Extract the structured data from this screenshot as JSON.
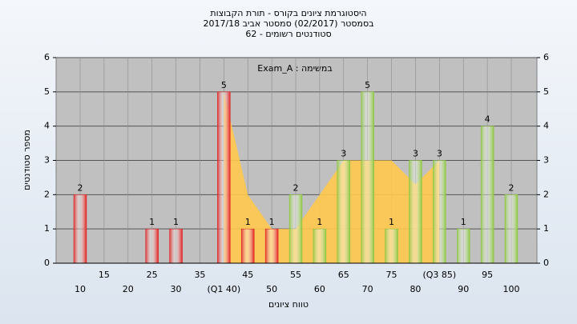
{
  "chart_data": {
    "type": "bar",
    "title": [
      "היסטוגרמת ציונים בקורס - תורת הקבוצות",
      "בסמסטר  (02/2017)  סמסטר אביב 2017/18",
      "62 - סטודנטים רשומים"
    ],
    "annotation": "Exam_A : במשימה",
    "ylabel": "מספר סטודנטים",
    "xlabel": "טווח ציונים",
    "categories": [
      "10",
      "15",
      "20",
      "25",
      "30",
      "35",
      "(Q1 40)",
      "45",
      "50",
      "55",
      "60",
      "65",
      "70",
      "75",
      "80",
      "(Q3 85)",
      "90",
      "95",
      "100"
    ],
    "values": [
      2,
      0,
      0,
      1,
      1,
      0,
      5,
      1,
      1,
      2,
      1,
      3,
      5,
      1,
      3,
      3,
      1,
      4,
      2
    ],
    "value_labels": [
      "2",
      null,
      null,
      "1",
      "1",
      null,
      "5",
      "1",
      "1",
      "2",
      "1",
      "3",
      "5",
      "1",
      "3",
      "3",
      "1",
      "4",
      "2"
    ],
    "colors": [
      "#e02020",
      "#e02020",
      "#e02020",
      "#e02020",
      "#e02020",
      "#e02020",
      "#e02020",
      "#e02020",
      "#e02020",
      "#8cc63f",
      "#8cc63f",
      "#8cc63f",
      "#8cc63f",
      "#8cc63f",
      "#8cc63f",
      "#8cc63f",
      "#8cc63f",
      "#8cc63f",
      "#8cc63f"
    ],
    "area_values": [
      null,
      null,
      null,
      null,
      null,
      null,
      5,
      2,
      1,
      1,
      2,
      3,
      3,
      3,
      2.3,
      3,
      null,
      null,
      null
    ],
    "area_color": "#ffc94d",
    "ylim": [
      0,
      6
    ],
    "yticks": [
      0,
      1,
      2,
      3,
      4,
      5,
      6
    ],
    "y2lim": [
      0,
      6
    ],
    "y2ticks": [
      0,
      1,
      2,
      3,
      4,
      5,
      6
    ],
    "grid": true
  }
}
